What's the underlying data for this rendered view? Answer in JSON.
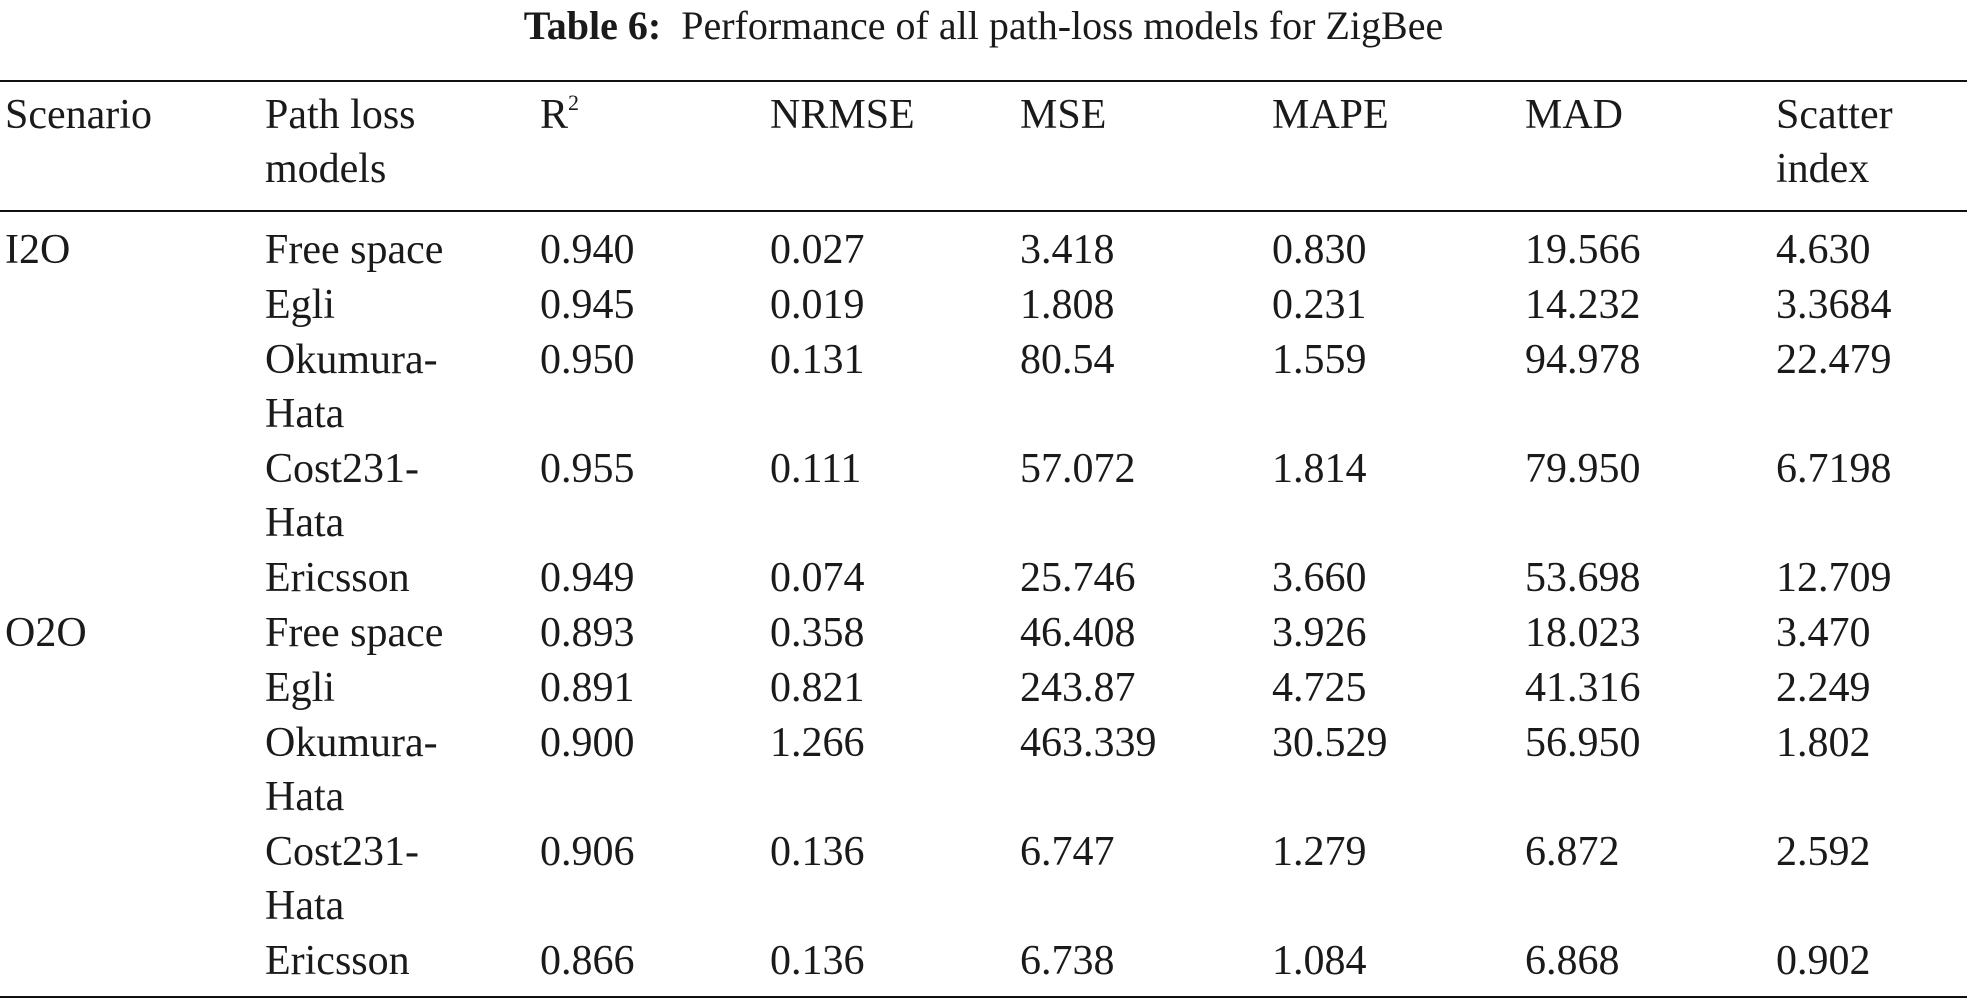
{
  "caption": {
    "label": "Table 6:",
    "title": "Performance of all path-loss models for ZigBee"
  },
  "headers": {
    "scenario": "Scenario",
    "model_line1": "Path loss",
    "model_line2": "models",
    "r2_base": "R",
    "r2_sup": "2",
    "nrmse": "NRMSE",
    "mse": "MSE",
    "mape": "MAPE",
    "mad": "MAD",
    "scatter_line1": "Scatter",
    "scatter_line2": "index"
  },
  "rows": [
    {
      "scenario": "I2O",
      "model1": "Free space",
      "model2": "",
      "r2": "0.940",
      "nrmse": "0.027",
      "mse": "3.418",
      "mape": "0.830",
      "mad": "19.566",
      "si": "4.630"
    },
    {
      "scenario": "",
      "model1": "Egli",
      "model2": "",
      "r2": "0.945",
      "nrmse": "0.019",
      "mse": "1.808",
      "mape": "0.231",
      "mad": "14.232",
      "si": "3.3684"
    },
    {
      "scenario": "",
      "model1": "Okumura-",
      "model2": "Hata",
      "r2": "0.950",
      "nrmse": "0.131",
      "mse": "80.54",
      "mape": "1.559",
      "mad": "94.978",
      "si": "22.479"
    },
    {
      "scenario": "",
      "model1": "Cost231-",
      "model2": "Hata",
      "r2": "0.955",
      "nrmse": "0.111",
      "mse": "57.072",
      "mape": "1.814",
      "mad": "79.950",
      "si": "6.7198"
    },
    {
      "scenario": "",
      "model1": "Ericsson",
      "model2": "",
      "r2": "0.949",
      "nrmse": "0.074",
      "mse": "25.746",
      "mape": "3.660",
      "mad": "53.698",
      "si": "12.709"
    },
    {
      "scenario": "O2O",
      "model1": "Free space",
      "model2": "",
      "r2": "0.893",
      "nrmse": "0.358",
      "mse": "46.408",
      "mape": "3.926",
      "mad": "18.023",
      "si": "3.470"
    },
    {
      "scenario": "",
      "model1": "Egli",
      "model2": "",
      "r2": "0.891",
      "nrmse": "0.821",
      "mse": "243.87",
      "mape": "4.725",
      "mad": "41.316",
      "si": "2.249"
    },
    {
      "scenario": "",
      "model1": "Okumura-",
      "model2": "Hata",
      "r2": "0.900",
      "nrmse": "1.266",
      "mse": "463.339",
      "mape": "30.529",
      "mad": "56.950",
      "si": "1.802"
    },
    {
      "scenario": "",
      "model1": "Cost231-",
      "model2": "Hata",
      "r2": "0.906",
      "nrmse": "0.136",
      "mse": "6.747",
      "mape": "1.279",
      "mad": "6.872",
      "si": "2.592"
    },
    {
      "scenario": "",
      "model1": "Ericsson",
      "model2": "",
      "r2": "0.866",
      "nrmse": "0.136",
      "mse": "6.738",
      "mape": "1.084",
      "mad": "6.868",
      "si": "0.902"
    }
  ]
}
